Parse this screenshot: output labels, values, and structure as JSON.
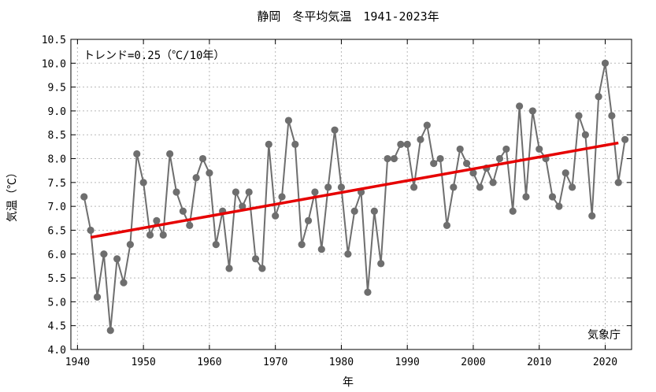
{
  "chart_data": {
    "type": "line",
    "title": "静岡　冬平均気温　1941-2023年",
    "xlabel": "年",
    "ylabel": "気温（℃）",
    "xlim": [
      1939,
      2024
    ],
    "ylim": [
      4.0,
      10.5
    ],
    "xticks": [
      1940,
      1950,
      1960,
      1970,
      1980,
      1990,
      2000,
      2010,
      2020
    ],
    "yticks": [
      4.0,
      4.5,
      5.0,
      5.5,
      6.0,
      6.5,
      7.0,
      7.5,
      8.0,
      8.5,
      9.0,
      9.5,
      10.0,
      10.5
    ],
    "grid": true,
    "trend_label": "トレンド=0.25（℃/10年）",
    "source_label": "気象庁",
    "series_color": "#6e6e6e",
    "trend_color": "#e60000",
    "series": [
      {
        "x": [
          1941,
          1942,
          1943,
          1944,
          1945,
          1946,
          1947,
          1948,
          1949,
          1950,
          1951,
          1952,
          1953,
          1954,
          1955,
          1956,
          1957,
          1958,
          1959,
          1960,
          1961,
          1962,
          1963,
          1964,
          1965,
          1966,
          1967,
          1968,
          1969,
          1970,
          1971,
          1972,
          1973,
          1974,
          1975,
          1976,
          1977,
          1978,
          1979,
          1980,
          1981,
          1982,
          1983,
          1984,
          1985,
          1986,
          1987,
          1988,
          1989,
          1990,
          1991,
          1992,
          1993,
          1994,
          1995,
          1996,
          1997,
          1998,
          1999,
          2000,
          2001,
          2002,
          2003,
          2004,
          2005,
          2006,
          2007,
          2008,
          2009,
          2010,
          2011,
          2012,
          2013,
          2014,
          2015,
          2016,
          2017,
          2018,
          2019,
          2020,
          2021,
          2022,
          2023
        ],
        "y": [
          7.2,
          6.5,
          5.1,
          6.0,
          4.4,
          5.9,
          5.4,
          6.2,
          8.1,
          7.5,
          6.4,
          6.7,
          6.4,
          8.1,
          7.3,
          6.9,
          6.6,
          7.6,
          8.0,
          7.7,
          6.2,
          6.9,
          5.7,
          7.3,
          7.0,
          7.3,
          5.9,
          5.7,
          8.3,
          6.8,
          7.2,
          8.8,
          8.3,
          6.2,
          6.7,
          7.3,
          6.1,
          7.4,
          8.6,
          7.4,
          6.0,
          6.9,
          7.3,
          5.2,
          6.9,
          5.8,
          8.0,
          8.0,
          8.3,
          8.3,
          7.4,
          8.4,
          8.7,
          7.9,
          8.0,
          6.6,
          7.4,
          8.2,
          7.9,
          7.7,
          7.4,
          7.8,
          7.5,
          8.0,
          8.2,
          6.9,
          9.1,
          7.2,
          9.0,
          8.2,
          8.0,
          7.2,
          7.0,
          7.7,
          7.4,
          8.9,
          8.5,
          6.8,
          9.3,
          10.0,
          8.9,
          7.5,
          8.4
        ]
      }
    ],
    "trend": {
      "x": [
        1942,
        2022
      ],
      "y": [
        6.35,
        8.33
      ]
    }
  }
}
